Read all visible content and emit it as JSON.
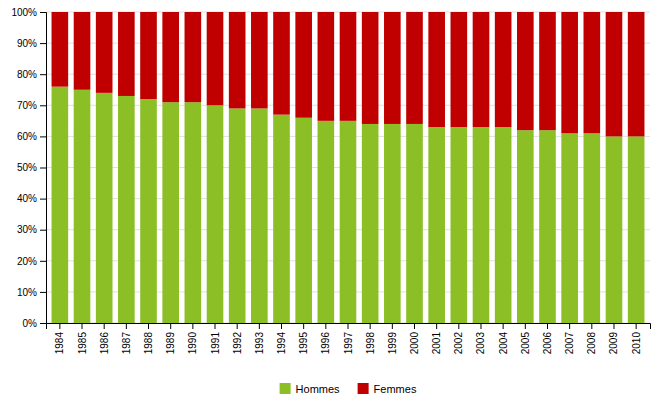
{
  "chart_data": {
    "type": "bar",
    "stacked": true,
    "categories": [
      "1984",
      "1985",
      "1986",
      "1987",
      "1988",
      "1989",
      "1990",
      "1991",
      "1992",
      "1993",
      "1994",
      "1995",
      "1996",
      "1997",
      "1998",
      "1999",
      "2000",
      "2001",
      "2002",
      "2003",
      "2004",
      "2005",
      "2006",
      "2007",
      "2008",
      "2009",
      "2010"
    ],
    "series": [
      {
        "name": "Hommes",
        "color": "#8CBF26",
        "values": [
          76,
          75,
          74,
          73,
          72,
          71,
          71,
          70,
          69,
          69,
          67,
          66,
          65,
          65,
          64,
          64,
          64,
          63,
          63,
          63,
          63,
          62,
          62,
          61,
          61,
          60,
          60
        ]
      },
      {
        "name": "Femmes",
        "color": "#C00000",
        "values": [
          24,
          25,
          26,
          27,
          28,
          29,
          29,
          30,
          31,
          31,
          33,
          34,
          35,
          35,
          36,
          36,
          36,
          37,
          37,
          37,
          37,
          38,
          38,
          39,
          39,
          40,
          40
        ]
      }
    ],
    "ylim": [
      0,
      100
    ],
    "yticks": [
      {
        "value": 0,
        "label": "0%"
      },
      {
        "value": 10,
        "label": "10%"
      },
      {
        "value": 20,
        "label": "20%"
      },
      {
        "value": 30,
        "label": "30%"
      },
      {
        "value": 40,
        "label": "40%"
      },
      {
        "value": 50,
        "label": "50%"
      },
      {
        "value": 60,
        "label": "60%"
      },
      {
        "value": 70,
        "label": "70%"
      },
      {
        "value": 80,
        "label": "80%"
      },
      {
        "value": 90,
        "label": "90%"
      },
      {
        "value": 100,
        "label": "100%"
      }
    ],
    "grid": true,
    "legend": "bottom"
  }
}
